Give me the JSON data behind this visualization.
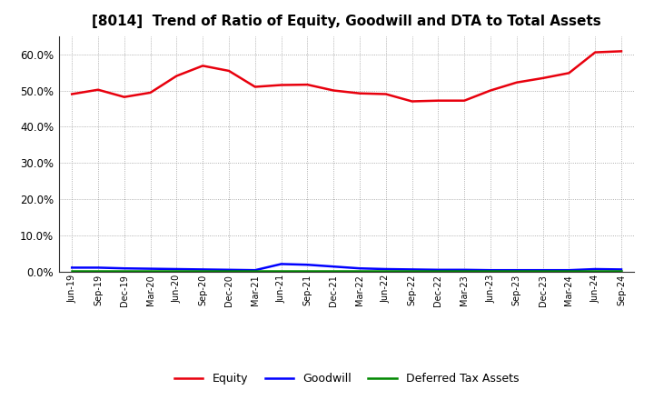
{
  "title": "[8014]  Trend of Ratio of Equity, Goodwill and DTA to Total Assets",
  "title_fontsize": 11,
  "labels": [
    "Jun-19",
    "Sep-19",
    "Dec-19",
    "Mar-20",
    "Jun-20",
    "Sep-20",
    "Dec-20",
    "Mar-21",
    "Jun-21",
    "Sep-21",
    "Dec-21",
    "Mar-22",
    "Jun-22",
    "Sep-22",
    "Dec-22",
    "Mar-23",
    "Jun-23",
    "Sep-23",
    "Dec-23",
    "Mar-24",
    "Jun-24",
    "Sep-24"
  ],
  "equity": [
    0.49,
    0.502,
    0.482,
    0.494,
    0.54,
    0.568,
    0.554,
    0.51,
    0.515,
    0.516,
    0.5,
    0.492,
    0.49,
    0.47,
    0.472,
    0.472,
    0.5,
    0.522,
    0.534,
    0.548,
    0.605,
    0.608
  ],
  "goodwill": [
    0.012,
    0.012,
    0.01,
    0.009,
    0.008,
    0.007,
    0.006,
    0.005,
    0.022,
    0.02,
    0.015,
    0.01,
    0.008,
    0.007,
    0.006,
    0.006,
    0.005,
    0.005,
    0.005,
    0.005,
    0.008,
    0.007
  ],
  "dta": [
    0.003,
    0.003,
    0.003,
    0.003,
    0.003,
    0.003,
    0.003,
    0.003,
    0.003,
    0.003,
    0.003,
    0.003,
    0.003,
    0.003,
    0.003,
    0.003,
    0.003,
    0.003,
    0.003,
    0.003,
    0.003,
    0.003
  ],
  "equity_color": "#e8000d",
  "goodwill_color": "#0000ff",
  "dta_color": "#008800",
  "legend_labels": [
    "Equity",
    "Goodwill",
    "Deferred Tax Assets"
  ],
  "ylim": [
    0.0,
    0.65
  ],
  "yticks": [
    0.0,
    0.1,
    0.2,
    0.3,
    0.4,
    0.5,
    0.6
  ],
  "background_color": "#ffffff",
  "plot_bg_color": "#ffffff",
  "grid_color": "#999999",
  "line_width": 1.8
}
